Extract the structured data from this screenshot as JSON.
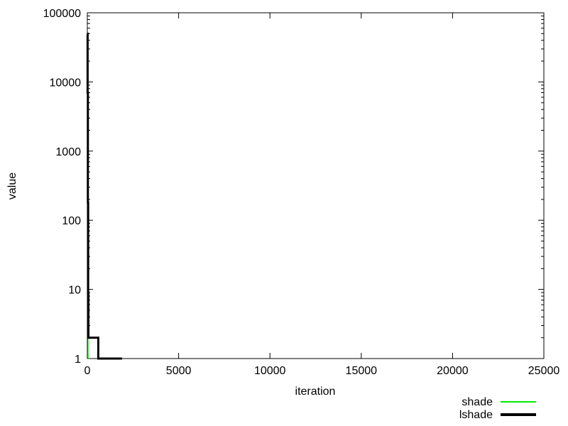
{
  "chart_data": {
    "type": "line",
    "title": "",
    "xlabel": "iteration",
    "ylabel": "value",
    "xlim": [
      0,
      25000
    ],
    "ylim": [
      1,
      100000
    ],
    "yscale": "log",
    "grid": false,
    "legend_position": "bottom-right",
    "xticks": [
      0,
      5000,
      10000,
      15000,
      20000,
      25000
    ],
    "xtick_labels": [
      "0",
      "5000",
      "10000",
      "15000",
      "20000",
      "25000"
    ],
    "yticks": [
      1,
      10,
      100,
      1000,
      10000,
      100000
    ],
    "ytick_labels": [
      "1",
      "10",
      "100",
      "1000",
      "10000",
      "100000"
    ],
    "series": [
      {
        "name": "shade",
        "color": "#00ee00",
        "line_width": 1,
        "x": [
          0,
          10,
          20,
          30,
          40,
          50,
          60
        ],
        "y": [
          50000,
          7000,
          180,
          10,
          2,
          1,
          1
        ]
      },
      {
        "name": "lshade",
        "color": "#000000",
        "line_width": 3,
        "x": [
          0,
          15,
          15,
          30,
          30,
          45,
          45,
          60,
          60,
          70,
          70,
          600,
          600,
          1900
        ],
        "y": [
          50000,
          50000,
          7000,
          7000,
          180,
          180,
          9,
          9,
          2,
          2,
          2,
          2,
          1,
          1
        ]
      }
    ]
  }
}
